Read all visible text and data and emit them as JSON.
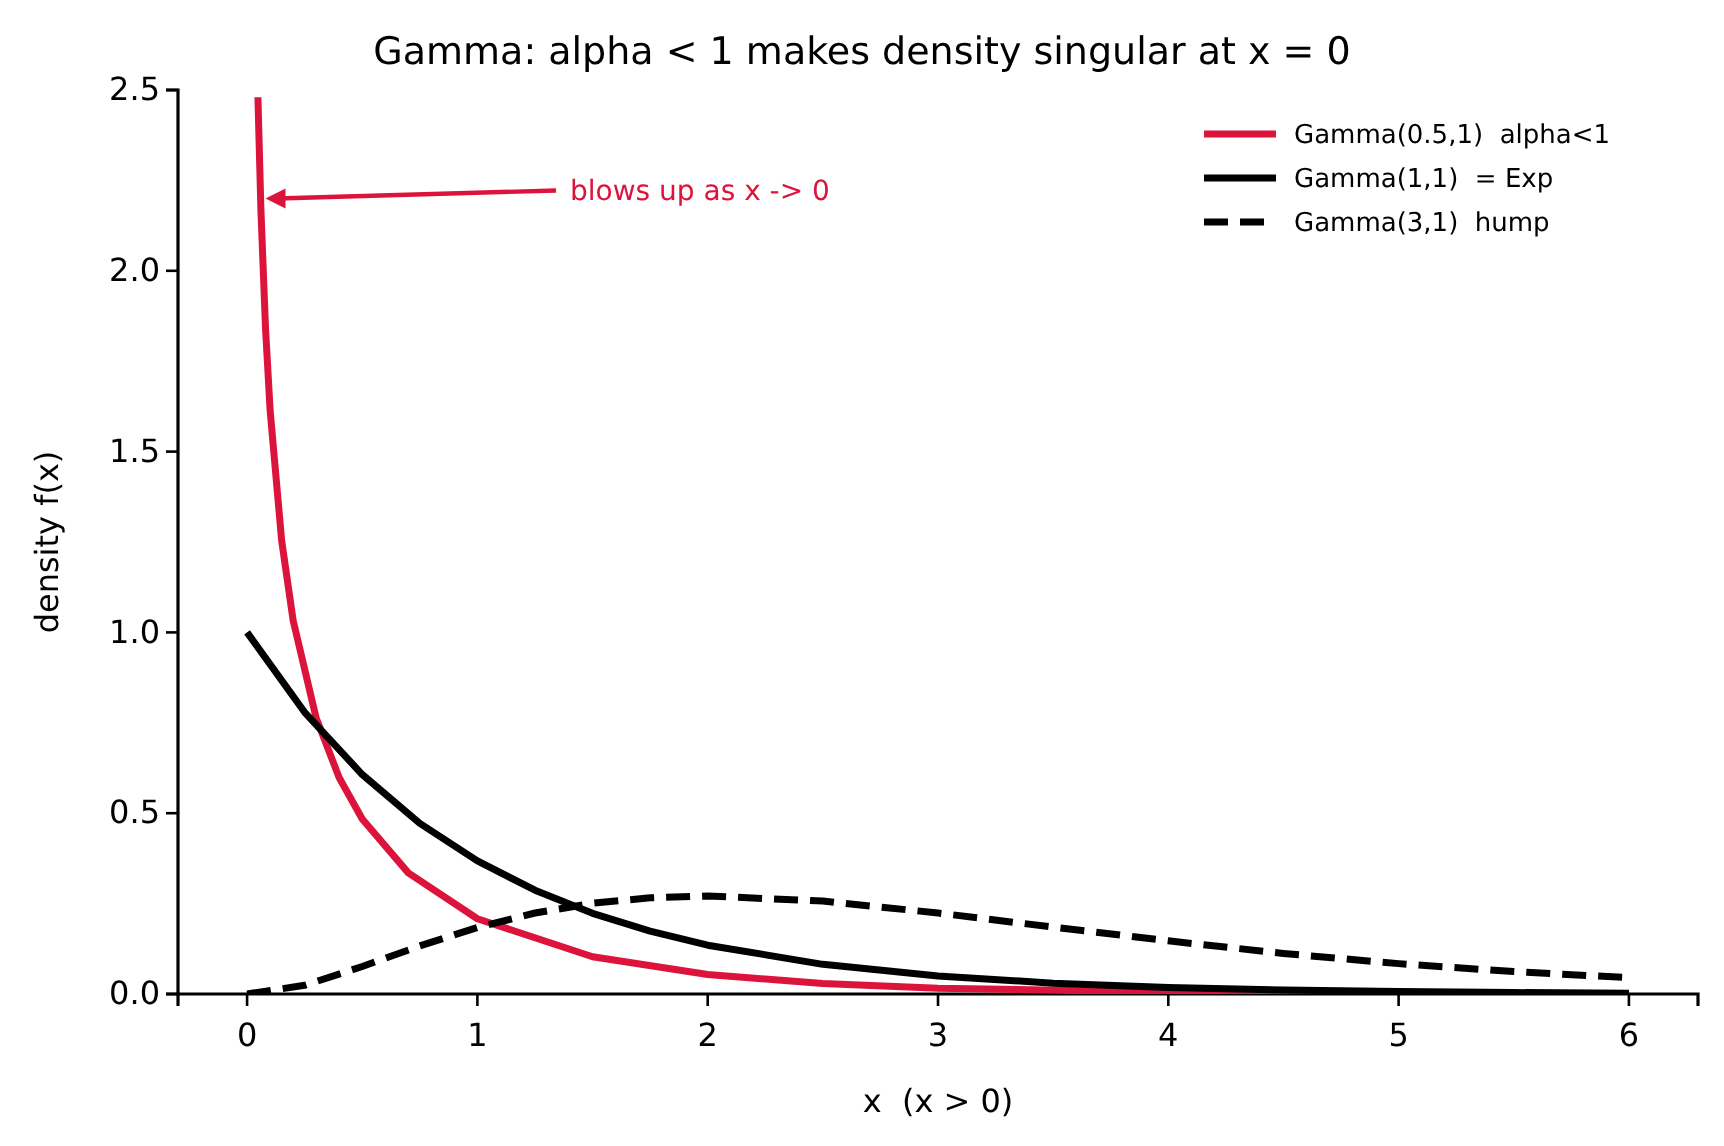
{
  "chart_data": {
    "type": "line",
    "title": "Gamma: alpha < 1 makes density singular at x = 0",
    "xlabel": "x  (x > 0)",
    "ylabel": "density f(x)",
    "xlim": [
      -0.3,
      6.3
    ],
    "ylim": [
      0,
      2.5
    ],
    "xticks": [
      0,
      1,
      2,
      3,
      4,
      5,
      6
    ],
    "yticks": [
      {
        "value": 0,
        "label": "0.0"
      },
      {
        "value": 0.5,
        "label": "0.5"
      },
      {
        "value": 1,
        "label": "1.0"
      },
      {
        "value": 1.5,
        "label": "1.5"
      },
      {
        "value": 2,
        "label": "2.0"
      },
      {
        "value": 2.5,
        "label": "2.5"
      }
    ],
    "grid": false,
    "legend": "top right",
    "annotations": [
      {
        "text": "blows up as x -> 0",
        "x": 0.08,
        "y": 2.2
      }
    ],
    "series": [
      {
        "name": "Gamma(0.5,1)  alpha<1",
        "color": "#dc143c",
        "line_style": "solid",
        "x": [
          0.047,
          0.06,
          0.08,
          0.1,
          0.15,
          0.2,
          0.3,
          0.4,
          0.5,
          0.7,
          1,
          1.5,
          2,
          2.5,
          3,
          4,
          5,
          6
        ],
        "values": [
          2.48,
          2.169,
          1.841,
          1.614,
          1.254,
          1.033,
          0.763,
          0.598,
          0.484,
          0.335,
          0.208,
          0.103,
          0.054,
          0.029,
          0.016,
          0.005,
          0.002,
          0.001
        ]
      },
      {
        "name": "Gamma(1,1)  = Exp",
        "color": "#000000",
        "line_style": "solid",
        "x": [
          0,
          0.25,
          0.5,
          0.75,
          1,
          1.25,
          1.5,
          1.75,
          2,
          2.5,
          3,
          3.5,
          4,
          4.5,
          5,
          5.5,
          6
        ],
        "values": [
          1,
          0.779,
          0.607,
          0.472,
          0.368,
          0.287,
          0.223,
          0.174,
          0.135,
          0.082,
          0.05,
          0.03,
          0.018,
          0.011,
          0.007,
          0.004,
          0.002
        ]
      },
      {
        "name": "Gamma(3,1)  hump",
        "color": "#000000",
        "line_style": "dashed",
        "x": [
          0,
          0.25,
          0.5,
          0.75,
          1,
          1.25,
          1.5,
          1.75,
          2,
          2.5,
          3,
          3.5,
          4,
          4.5,
          5,
          5.5,
          6
        ],
        "values": [
          0,
          0.024,
          0.076,
          0.133,
          0.184,
          0.224,
          0.251,
          0.266,
          0.271,
          0.257,
          0.224,
          0.185,
          0.147,
          0.112,
          0.084,
          0.062,
          0.045
        ]
      }
    ]
  }
}
